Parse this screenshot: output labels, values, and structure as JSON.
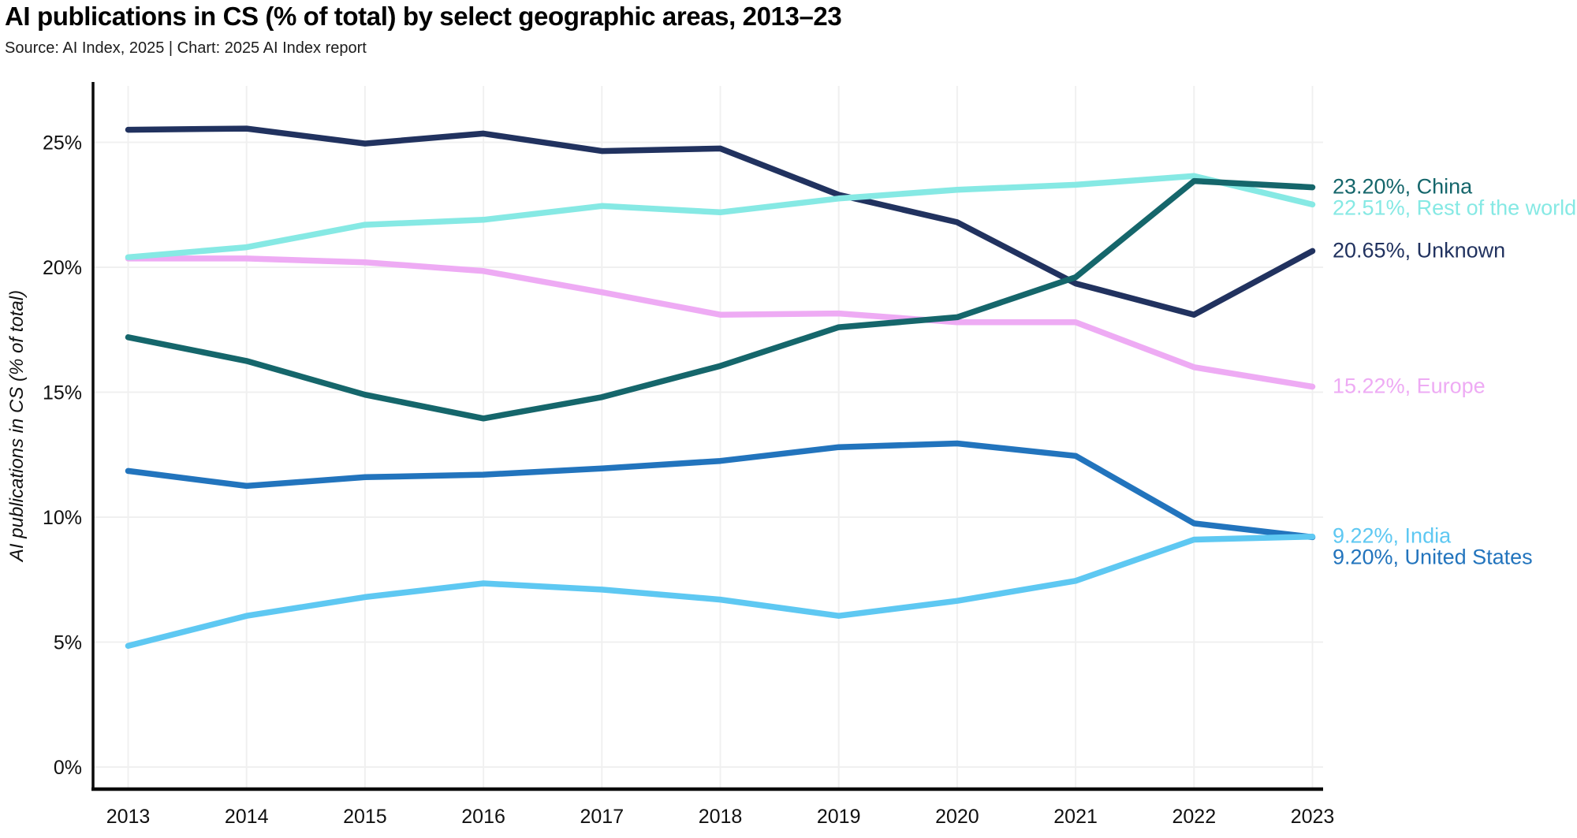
{
  "header": {
    "title": "AI publications in CS (% of total) by select geographic areas, 2013–23",
    "source": "Source: AI Index, 2025 | Chart: 2025 AI Index report"
  },
  "chart_data": {
    "type": "line",
    "title": "AI publications in CS (% of total) by select geographic areas, 2013–23",
    "xlabel": "",
    "ylabel": "AI publications in CS (% of total)",
    "x": [
      2013,
      2014,
      2015,
      2016,
      2017,
      2018,
      2019,
      2020,
      2021,
      2022,
      2023
    ],
    "x_tick_labels": [
      "2013",
      "2014",
      "2015",
      "2016",
      "2017",
      "2018",
      "2019",
      "2020",
      "2021",
      "2022",
      "2023"
    ],
    "y_ticks": [
      0,
      5,
      10,
      15,
      20,
      25
    ],
    "y_tick_labels": [
      "0%",
      "5%",
      "10%",
      "15%",
      "20%",
      "25%"
    ],
    "ylim": [
      0,
      27.2
    ],
    "grid": true,
    "legend_position": "end-of-line-labels-right",
    "series": [
      {
        "name": "Unknown",
        "color": "#21325f",
        "end_label": "20.65%, Unknown",
        "end_value": "20.65%",
        "values": [
          25.5,
          25.55,
          24.95,
          25.35,
          24.65,
          24.75,
          22.9,
          21.8,
          19.35,
          18.1,
          20.65
        ]
      },
      {
        "name": "Europe",
        "color": "#eeabf4",
        "end_label": "15.22%, Europe",
        "end_value": "15.22%",
        "values": [
          20.35,
          20.35,
          20.2,
          19.85,
          19.0,
          18.1,
          18.15,
          17.8,
          17.8,
          16.0,
          15.22
        ]
      },
      {
        "name": "Rest of the world",
        "color": "#86e9e4",
        "end_label": "22.51%, Rest of the world",
        "end_value": "22.51%",
        "values": [
          20.4,
          20.8,
          21.7,
          21.9,
          22.45,
          22.2,
          22.75,
          23.1,
          23.3,
          23.65,
          22.51
        ]
      },
      {
        "name": "China",
        "color": "#15666b",
        "end_label": "23.20%, China",
        "end_value": "23.20%",
        "values": [
          17.2,
          16.25,
          14.9,
          13.95,
          14.8,
          16.05,
          17.6,
          18.0,
          19.6,
          23.45,
          23.2
        ]
      },
      {
        "name": "United States",
        "color": "#2274bd",
        "end_label": "9.20%, United States",
        "end_value": "9.20%",
        "values": [
          11.85,
          11.25,
          11.6,
          11.7,
          11.95,
          12.25,
          12.8,
          12.95,
          12.45,
          9.75,
          9.2
        ]
      },
      {
        "name": "India",
        "color": "#5ec8f2",
        "end_label": "9.22%, India",
        "end_value": "9.22%",
        "values": [
          4.85,
          6.05,
          6.8,
          7.35,
          7.1,
          6.7,
          6.05,
          6.65,
          7.45,
          9.1,
          9.22
        ]
      }
    ]
  }
}
